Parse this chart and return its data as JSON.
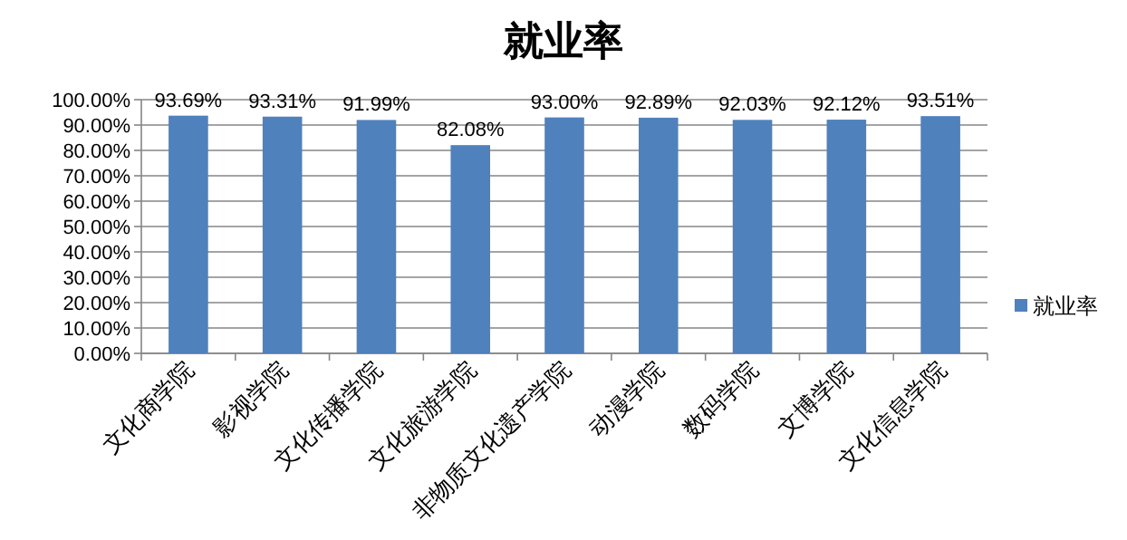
{
  "chart_data": {
    "type": "bar",
    "title": "就业率",
    "categories": [
      "文化商学院",
      "影视学院",
      "文化传播学院",
      "文化旅游学院",
      "非物质文化遗产学院",
      "动漫学院",
      "数码学院",
      "文博学院",
      "文化信息学院"
    ],
    "series": [
      {
        "name": "就业率",
        "color": "#4f81bd",
        "values": [
          93.69,
          93.31,
          91.99,
          82.08,
          93.0,
          92.89,
          92.03,
          92.12,
          93.51
        ],
        "value_labels": [
          "93.69%",
          "93.31%",
          "91.99%",
          "82.08%",
          "93.00%",
          "92.89%",
          "92.03%",
          "92.12%",
          "93.51%"
        ]
      }
    ],
    "ylim": [
      0,
      100
    ],
    "yticks": [
      {
        "value": 0,
        "label": "0.00%"
      },
      {
        "value": 10,
        "label": "10.00%"
      },
      {
        "value": 20,
        "label": "20.00%"
      },
      {
        "value": 30,
        "label": "30.00%"
      },
      {
        "value": 40,
        "label": "40.00%"
      },
      {
        "value": 50,
        "label": "50.00%"
      },
      {
        "value": 60,
        "label": "60.00%"
      },
      {
        "value": 70,
        "label": "70.00%"
      },
      {
        "value": 80,
        "label": "80.00%"
      },
      {
        "value": 90,
        "label": "90.00%"
      },
      {
        "value": 100,
        "label": "100.00%"
      }
    ],
    "grid": "y",
    "legend": "right"
  }
}
